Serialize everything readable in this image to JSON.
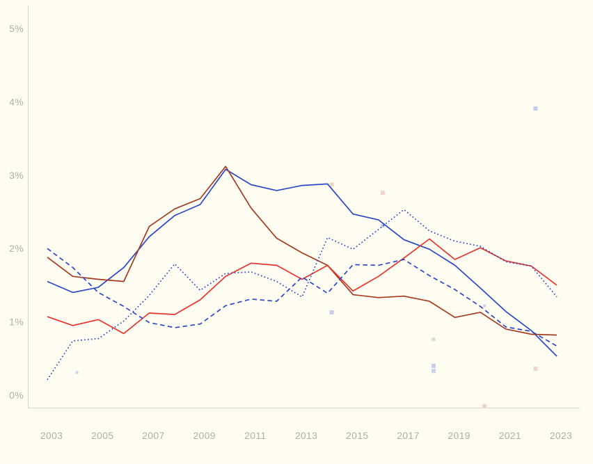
{
  "chart_data": {
    "type": "line",
    "title": "",
    "xlabel": "",
    "ylabel": "",
    "grid": false,
    "legend": "none",
    "x": [
      2003,
      2004,
      2005,
      2006,
      2007,
      2008,
      2009,
      2010,
      2011,
      2012,
      2013,
      2014,
      2015,
      2016,
      2017,
      2018,
      2019,
      2020,
      2021,
      2022,
      2023
    ],
    "x_tick_years": [
      2003,
      2005,
      2007,
      2009,
      2011,
      2013,
      2015,
      2017,
      2019,
      2021,
      2023
    ],
    "x_tick_labels": [
      "2003",
      "2005",
      "2007",
      "2009",
      "2011",
      "2013",
      "2015",
      "2017",
      "2019",
      "2021",
      "2023"
    ],
    "y_ticks": [
      0,
      1,
      2,
      3,
      4,
      5
    ],
    "y_tick_labels": [
      "0%",
      "1%",
      "2%",
      "3%",
      "4%",
      "5%"
    ],
    "ylim": [
      0,
      5
    ],
    "series": [
      {
        "name": "blue-solid",
        "color": "#2a46cc",
        "style": "solid",
        "values": [
          1.55,
          1.4,
          1.47,
          1.74,
          2.16,
          2.45,
          2.6,
          3.08,
          2.87,
          2.79,
          2.86,
          2.88,
          2.47,
          2.39,
          2.12,
          1.99,
          1.77,
          1.46,
          1.14,
          0.88,
          0.53
        ]
      },
      {
        "name": "dark-red-solid",
        "color": "#a33b1f",
        "style": "solid",
        "values": [
          1.88,
          1.62,
          1.58,
          1.55,
          2.3,
          2.54,
          2.68,
          3.12,
          2.55,
          2.14,
          1.94,
          1.77,
          1.37,
          1.33,
          1.35,
          1.28,
          1.06,
          1.13,
          0.9,
          0.83,
          0.82
        ]
      },
      {
        "name": "red-solid",
        "color": "#e8332b",
        "style": "solid",
        "values": [
          1.07,
          0.95,
          1.03,
          0.84,
          1.12,
          1.1,
          1.3,
          1.62,
          1.8,
          1.77,
          1.58,
          1.77,
          1.42,
          1.62,
          1.87,
          2.13,
          1.85,
          2.01,
          1.83,
          1.76,
          1.5
        ]
      },
      {
        "name": "blue-dashed",
        "color": "#2a46cc",
        "style": "dashed",
        "values": [
          2.0,
          1.74,
          1.4,
          1.21,
          0.99,
          0.92,
          0.97,
          1.22,
          1.31,
          1.28,
          1.61,
          1.39,
          1.78,
          1.77,
          1.85,
          1.63,
          1.44,
          1.21,
          0.93,
          0.87,
          0.67
        ]
      },
      {
        "name": "blue-dotted",
        "color": "#2a46cc",
        "style": "dotted",
        "values": [
          0.21,
          0.74,
          0.77,
          1.01,
          1.36,
          1.79,
          1.43,
          1.66,
          1.68,
          1.55,
          1.34,
          2.15,
          1.99,
          2.26,
          2.53,
          2.24,
          2.1,
          2.03,
          1.82,
          1.76,
          1.34
        ]
      }
    ],
    "scatter_markers": [
      {
        "year": 2022,
        "value": 3.91,
        "color_name": "lavender",
        "color": "#c6cce9",
        "size": 6
      },
      {
        "year": 2016,
        "value": 2.76,
        "color_name": "pink",
        "color": "#eed4ca",
        "size": 6
      },
      {
        "year": 2014,
        "value": 2.87,
        "color_name": "tan",
        "color": "#e9d9c2",
        "size": 6
      },
      {
        "year": 2016,
        "value": 2.31,
        "color_name": "lavender",
        "color": "#c6cce9",
        "size": 5
      },
      {
        "year": 2014,
        "value": 1.13,
        "color_name": "lavender",
        "color": "#c6cce9",
        "size": 6
      },
      {
        "year": 2018,
        "value": 0.76,
        "color_name": "pink",
        "color": "#eed4ca",
        "size": 5
      },
      {
        "year": 2018,
        "value": 0.4,
        "color_name": "lavender",
        "color": "#c6cce9",
        "size": 6
      },
      {
        "year": 2018,
        "value": 0.33,
        "color_name": "lavender",
        "color": "#cdd2ec",
        "size": 6
      },
      {
        "year": 2022,
        "value": 0.36,
        "color_name": "pink",
        "color": "#eed4ca",
        "size": 6
      },
      {
        "year": 2020,
        "value": -0.15,
        "color_name": "pink",
        "color": "#eed4ca",
        "size": 6
      },
      {
        "year": 2020,
        "value": 1.22,
        "color_name": "lavender",
        "color": "#ccd1ea",
        "size": 4
      },
      {
        "year": 2004,
        "value": 0.31,
        "color_name": "lavender",
        "color": "#ccd1ea",
        "size": 4
      }
    ]
  },
  "colors": {
    "background": "#fffdf2",
    "axis_line": "#d8d4c8",
    "tick_text": "#b5ada1"
  }
}
